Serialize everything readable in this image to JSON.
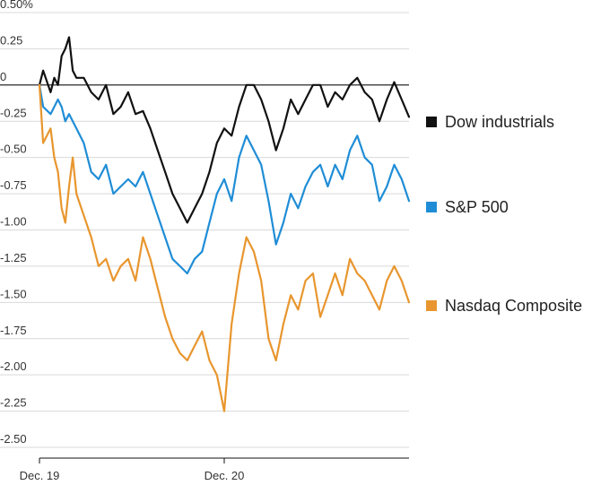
{
  "chart_data": {
    "type": "line",
    "title": "",
    "xlabel": "",
    "ylabel": "",
    "ylim": [
      -2.6,
      0.5
    ],
    "y_ticks": [
      {
        "value": 0.5,
        "label": "0.50%"
      },
      {
        "value": 0.25,
        "label": "0.25"
      },
      {
        "value": 0,
        "label": "0"
      },
      {
        "value": -0.25,
        "label": "-0.25"
      },
      {
        "value": -0.5,
        "label": "-0.50"
      },
      {
        "value": -0.75,
        "label": "-0.75"
      },
      {
        "value": -1.0,
        "label": "-1.00"
      },
      {
        "value": -1.25,
        "label": "-1.25"
      },
      {
        "value": -1.5,
        "label": "-1.50"
      },
      {
        "value": -1.75,
        "label": "-1.75"
      },
      {
        "value": -2.0,
        "label": "-2.00"
      },
      {
        "value": -2.25,
        "label": "-2.25"
      },
      {
        "value": -2.5,
        "label": "-2.50"
      }
    ],
    "x_ticks": [
      {
        "t": 0,
        "label": "Dec. 19"
      },
      {
        "t": 50,
        "label": "Dec. 20"
      }
    ],
    "xlim": [
      0,
      100
    ],
    "zero_line": true,
    "grid": "horizontal",
    "legend": "right",
    "series": [
      {
        "name": "Dow industrials",
        "color": "#111111",
        "t": [
          0,
          1,
          3,
          4,
          5,
          6,
          7,
          8,
          9,
          10,
          12,
          14,
          16,
          18,
          20,
          22,
          24,
          26,
          28,
          30,
          32,
          34,
          36,
          38,
          40,
          42,
          44,
          46,
          48,
          50,
          52,
          54,
          56,
          58,
          60,
          62,
          64,
          66,
          68,
          70,
          72,
          74,
          76,
          78,
          80,
          82,
          84,
          86,
          88,
          90,
          92,
          94,
          96,
          98,
          100
        ],
        "values": [
          0,
          0.1,
          -0.05,
          0.05,
          0.0,
          0.2,
          0.25,
          0.33,
          0.1,
          0.05,
          0.05,
          -0.05,
          -0.1,
          0.0,
          -0.2,
          -0.15,
          -0.05,
          -0.2,
          -0.18,
          -0.3,
          -0.45,
          -0.6,
          -0.75,
          -0.85,
          -0.95,
          -0.85,
          -0.75,
          -0.6,
          -0.4,
          -0.3,
          -0.35,
          -0.15,
          0.0,
          0.0,
          -0.1,
          -0.25,
          -0.45,
          -0.3,
          -0.1,
          -0.2,
          -0.1,
          0.0,
          0.0,
          -0.15,
          -0.05,
          -0.1,
          0.0,
          0.05,
          -0.05,
          -0.1,
          -0.25,
          -0.1,
          0.02,
          -0.1,
          -0.22
        ]
      },
      {
        "name": "S&P 500",
        "color": "#1f8dd6",
        "t": [
          0,
          1,
          3,
          4,
          5,
          6,
          7,
          8,
          9,
          10,
          12,
          14,
          16,
          18,
          20,
          22,
          24,
          26,
          28,
          30,
          32,
          34,
          36,
          38,
          40,
          42,
          44,
          46,
          48,
          50,
          52,
          54,
          56,
          58,
          60,
          62,
          64,
          66,
          68,
          70,
          72,
          74,
          76,
          78,
          80,
          82,
          84,
          86,
          88,
          90,
          92,
          94,
          96,
          98,
          100
        ],
        "values": [
          0,
          -0.15,
          -0.2,
          -0.15,
          -0.1,
          -0.15,
          -0.25,
          -0.2,
          -0.25,
          -0.3,
          -0.4,
          -0.6,
          -0.65,
          -0.55,
          -0.75,
          -0.7,
          -0.65,
          -0.7,
          -0.6,
          -0.75,
          -0.9,
          -1.05,
          -1.2,
          -1.25,
          -1.3,
          -1.2,
          -1.15,
          -0.95,
          -0.75,
          -0.65,
          -0.8,
          -0.5,
          -0.35,
          -0.45,
          -0.55,
          -0.8,
          -1.1,
          -0.95,
          -0.75,
          -0.85,
          -0.7,
          -0.6,
          -0.55,
          -0.7,
          -0.55,
          -0.65,
          -0.45,
          -0.35,
          -0.5,
          -0.55,
          -0.8,
          -0.7,
          -0.55,
          -0.65,
          -0.8
        ]
      },
      {
        "name": "Nasdaq Composite",
        "color": "#e8962e",
        "t": [
          0,
          1,
          3,
          4,
          5,
          6,
          7,
          8,
          9,
          10,
          12,
          14,
          16,
          18,
          20,
          22,
          24,
          26,
          28,
          30,
          32,
          34,
          36,
          38,
          40,
          42,
          44,
          46,
          48,
          50,
          52,
          54,
          56,
          58,
          60,
          62,
          64,
          66,
          68,
          70,
          72,
          74,
          76,
          78,
          80,
          82,
          84,
          86,
          88,
          90,
          92,
          94,
          96,
          98,
          100
        ],
        "values": [
          0,
          -0.4,
          -0.3,
          -0.5,
          -0.6,
          -0.85,
          -0.95,
          -0.7,
          -0.5,
          -0.75,
          -0.9,
          -1.05,
          -1.25,
          -1.2,
          -1.35,
          -1.25,
          -1.2,
          -1.35,
          -1.05,
          -1.2,
          -1.4,
          -1.6,
          -1.75,
          -1.85,
          -1.9,
          -1.8,
          -1.7,
          -1.9,
          -2.0,
          -2.25,
          -1.65,
          -1.3,
          -1.05,
          -1.15,
          -1.35,
          -1.75,
          -1.9,
          -1.65,
          -1.45,
          -1.55,
          -1.35,
          -1.3,
          -1.6,
          -1.45,
          -1.3,
          -1.45,
          -1.2,
          -1.3,
          -1.35,
          -1.45,
          -1.55,
          -1.35,
          -1.25,
          -1.35,
          -1.5
        ]
      }
    ]
  }
}
